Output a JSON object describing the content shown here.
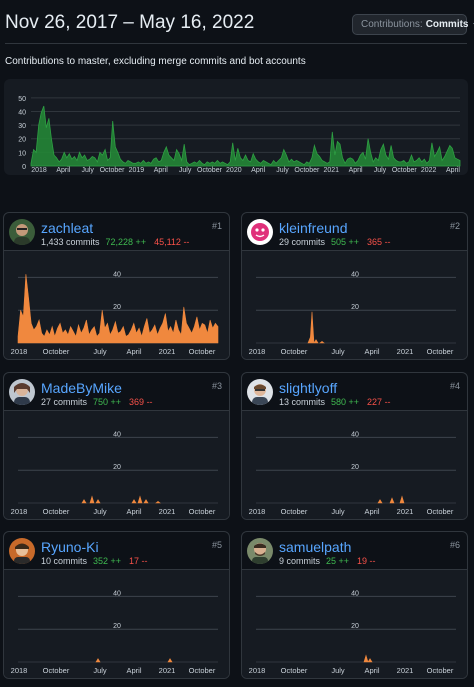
{
  "header": {
    "date_range": "Nov 26, 2017 – May 16, 2022",
    "dropdown_label": "Contributions:",
    "dropdown_value": "Commits",
    "subtitle": "Contributions to master, excluding merge commits and bot accounts"
  },
  "colors": {
    "main_fill": "#238636",
    "main_stroke": "#2ea043",
    "card_fill": "#f0883e",
    "additions": "#3fb950",
    "deletions": "#f85149",
    "link": "#58a6ff"
  },
  "chart_data": [
    {
      "type": "area",
      "series": "total",
      "y_ticks": [
        "0",
        "10",
        "20",
        "30",
        "40",
        "50"
      ],
      "ylim": [
        0,
        55
      ],
      "x_ticks": [
        "2018",
        "April",
        "July",
        "October",
        "2019",
        "April",
        "July",
        "October",
        "2020",
        "April",
        "July",
        "October",
        "2021",
        "April",
        "July",
        "October",
        "2022",
        "April"
      ],
      "weekly_commits": [
        2,
        12,
        10,
        30,
        39,
        44,
        28,
        35,
        20,
        8,
        6,
        3,
        5,
        10,
        6,
        9,
        5,
        7,
        4,
        10,
        6,
        8,
        4,
        5,
        7,
        6,
        3,
        10,
        8,
        12,
        4,
        6,
        33,
        14,
        10,
        5,
        3,
        2,
        4,
        3,
        2,
        2,
        3,
        2,
        4,
        2,
        3,
        2,
        5,
        6,
        3,
        4,
        10,
        14,
        8,
        6,
        4,
        12,
        9,
        4,
        16,
        3,
        1,
        2,
        3,
        2,
        4,
        2,
        1,
        3,
        2,
        3,
        2,
        4,
        2,
        3,
        2,
        1,
        3,
        17,
        4,
        13,
        6,
        4,
        8,
        4,
        3,
        9,
        5,
        3,
        2,
        4,
        3,
        2,
        1,
        4,
        2,
        4,
        6,
        12,
        8,
        3,
        5,
        3,
        4,
        3,
        2,
        1,
        3,
        2,
        6,
        15,
        9,
        7,
        4,
        3,
        2,
        3,
        25,
        8,
        18,
        16,
        6,
        2,
        5,
        6,
        5,
        2,
        4,
        8,
        10,
        5,
        20,
        10,
        3,
        6,
        4,
        12,
        16,
        8,
        5,
        15,
        6,
        4,
        3,
        3,
        4,
        2,
        3,
        8,
        3,
        4,
        6,
        3,
        5,
        2,
        4,
        17,
        7,
        10,
        14,
        4,
        7,
        11,
        15,
        13,
        6,
        5,
        4
      ]
    },
    {
      "type": "area",
      "series": "zachleat",
      "y_ticks": [
        "20",
        "40"
      ],
      "x_ticks": [
        "2018",
        "October",
        "July",
        "April",
        "2021",
        "October"
      ],
      "weekly_commits": [
        4,
        20,
        16,
        42,
        28,
        12,
        8,
        10,
        14,
        6,
        4,
        8,
        5,
        10,
        4,
        9,
        12,
        6,
        8,
        5,
        10,
        7,
        4,
        11,
        6,
        9,
        14,
        5,
        8,
        10,
        4,
        6,
        20,
        9,
        12,
        5,
        8,
        13,
        6,
        7,
        10,
        4,
        5,
        8,
        12,
        6,
        9,
        4,
        10,
        15,
        6,
        8,
        11,
        5,
        9,
        12,
        18,
        7,
        10,
        6,
        14,
        8,
        5,
        22,
        12,
        9,
        6,
        10,
        16,
        8,
        12,
        11,
        6,
        14,
        9,
        12,
        10
      ]
    },
    {
      "type": "area",
      "series": "kleinfreund",
      "y_ticks": [
        "20",
        "40"
      ],
      "x_ticks": [
        "2018",
        "October",
        "July",
        "April",
        "2021",
        "October"
      ],
      "peaks": [
        [
          0.28,
          19
        ],
        [
          0.27,
          3
        ],
        [
          0.3,
          2
        ],
        [
          0.33,
          1
        ]
      ]
    },
    {
      "type": "area",
      "series": "MadeByMike",
      "y_ticks": [
        "20",
        "40"
      ],
      "x_ticks": [
        "2018",
        "October",
        "July",
        "April",
        "2021",
        "October"
      ],
      "peaks": [
        [
          0.33,
          2
        ],
        [
          0.37,
          4
        ],
        [
          0.4,
          2
        ],
        [
          0.58,
          2
        ],
        [
          0.61,
          4
        ],
        [
          0.64,
          2
        ],
        [
          0.7,
          1
        ]
      ]
    },
    {
      "type": "area",
      "series": "slightlyoff",
      "y_ticks": [
        "20",
        "40"
      ],
      "x_ticks": [
        "2018",
        "October",
        "July",
        "April",
        "2021",
        "October"
      ],
      "peaks": [
        [
          0.62,
          2
        ],
        [
          0.68,
          3
        ],
        [
          0.73,
          4
        ]
      ]
    },
    {
      "type": "area",
      "series": "Ryuno-Ki",
      "y_ticks": [
        "20",
        "40"
      ],
      "x_ticks": [
        "2018",
        "October",
        "July",
        "April",
        "2021",
        "October"
      ],
      "peaks": [
        [
          0.4,
          2
        ],
        [
          0.76,
          2
        ]
      ]
    },
    {
      "type": "area",
      "series": "samuelpath",
      "y_ticks": [
        "20",
        "40"
      ],
      "x_ticks": [
        "2018",
        "October",
        "July",
        "April",
        "2021",
        "October"
      ],
      "peaks": [
        [
          0.55,
          4
        ],
        [
          0.57,
          2
        ]
      ]
    }
  ],
  "contributors": [
    {
      "login": "zachleat",
      "commits": "1,433 commits",
      "additions": "72,228 ++",
      "deletions": "45,112 --",
      "rank": "#1",
      "avatar": "avatar-zachleat"
    },
    {
      "login": "kleinfreund",
      "commits": "29 commits",
      "additions": "505 ++",
      "deletions": "365 --",
      "rank": "#2",
      "avatar": "avatar-kleinfreund"
    },
    {
      "login": "MadeByMike",
      "commits": "27 commits",
      "additions": "750 ++",
      "deletions": "369 --",
      "rank": "#3",
      "avatar": "avatar-madebymike"
    },
    {
      "login": "slightlyoff",
      "commits": "13 commits",
      "additions": "580 ++",
      "deletions": "227 --",
      "rank": "#4",
      "avatar": "avatar-slightlyoff"
    },
    {
      "login": "Ryuno-Ki",
      "commits": "10 commits",
      "additions": "352 ++",
      "deletions": "17 --",
      "rank": "#5",
      "avatar": "avatar-ryuno-ki"
    },
    {
      "login": "samuelpath",
      "commits": "9 commits",
      "additions": "25 ++",
      "deletions": "19 --",
      "rank": "#6",
      "avatar": "avatar-samuelpath"
    }
  ]
}
